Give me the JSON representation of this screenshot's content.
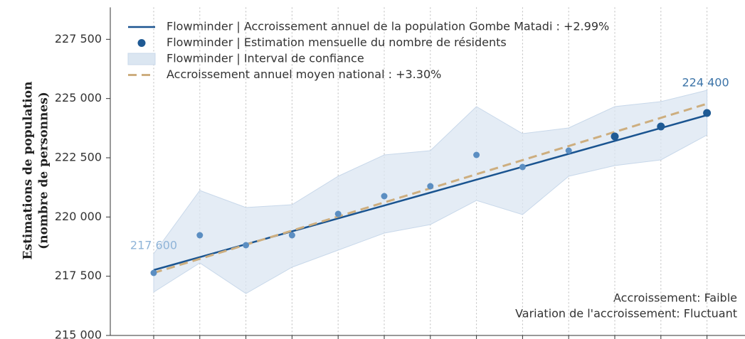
{
  "chart_data": {
    "type": "line",
    "categories": [
      null,
      null,
      null,
      null,
      null,
      null,
      null,
      null,
      null,
      null,
      null,
      null,
      null
    ],
    "ylim": [
      215000,
      228850
    ],
    "yticks": [
      {
        "value": 215000,
        "label": "215 000"
      },
      {
        "value": 217500,
        "label": "217 500"
      },
      {
        "value": 220000,
        "label": "220 000"
      },
      {
        "value": 222500,
        "label": "222 500"
      },
      {
        "value": 225000,
        "label": "225 000"
      },
      {
        "value": 227500,
        "label": "227 500"
      }
    ],
    "y_label": [
      "Estimations de population",
      "(nombre de personnes)"
    ],
    "grid": "x",
    "legend": "upper left",
    "series": [
      {
        "name": "Flowminder | Accroissement annuel de la population Gombe Matadi : +2.99%",
        "style": "line",
        "color": "#1a5490",
        "values": [
          217760,
          218305,
          218850,
          219395,
          219940,
          220485,
          221030,
          221575,
          222120,
          222665,
          223210,
          223755,
          224300
        ]
      },
      {
        "name": "Flowminder | Estimation mensuelle du nombre de résidents",
        "style": "scatter",
        "color": "#1f5a94",
        "point_colors": [
          "#5b8ec2",
          "#5b8ec2",
          "#5b8ec2",
          "#5b8ec2",
          "#5b8ec2",
          "#5b8ec2",
          "#5b8ec2",
          "#5b8ec2",
          "#5b8ec2",
          "#5b8ec2",
          "#1f5a94",
          "#1f5a94",
          "#1f5a94"
        ],
        "values": [
          217640,
          219230,
          218810,
          219230,
          220130,
          220880,
          221300,
          222620,
          222110,
          222800,
          223400,
          223820,
          224390
        ],
        "value_labels": [
          "217 600",
          null,
          null,
          null,
          null,
          null,
          null,
          null,
          null,
          null,
          null,
          null,
          "224 400"
        ],
        "value_label_colors": [
          "#8fb4d8",
          null,
          null,
          null,
          null,
          null,
          null,
          null,
          null,
          null,
          null,
          null,
          "#3c74a8"
        ]
      },
      {
        "name": "Flowminder | Interval de confiance",
        "style": "band",
        "color": "#dbe6f1",
        "upper": [
          218450,
          221120,
          220400,
          220520,
          221720,
          222620,
          222800,
          224660,
          223520,
          223760,
          224660,
          224870,
          225350
        ],
        "lower": [
          216830,
          218060,
          216770,
          217880,
          218600,
          219320,
          219680,
          220700,
          220100,
          221720,
          222170,
          222410,
          223460
        ]
      },
      {
        "name": "Accroissement annuel moyen national : +3.30%",
        "style": "dashed",
        "color": "#cdae7f",
        "values": [
          217640,
          218235,
          218830,
          219425,
          220020,
          220615,
          221210,
          221805,
          222400,
          222995,
          223590,
          224185,
          224780
        ]
      }
    ],
    "annotations": [
      "Accroissement: Faible",
      "Variation de l'accroissement: Fluctuant"
    ]
  }
}
